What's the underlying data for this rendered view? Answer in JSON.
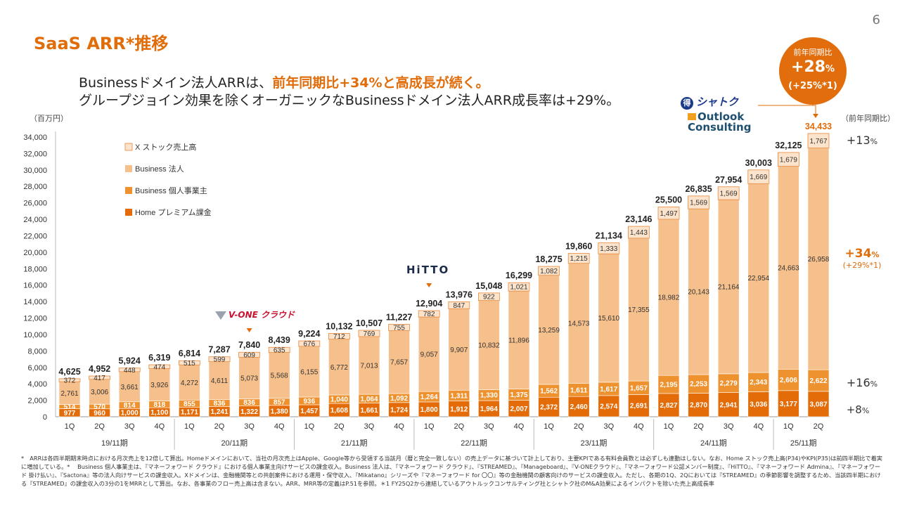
{
  "page": {
    "number": "6",
    "title": "SaaS ARR*推移",
    "headline1_prefix": "Businessドメイン法人ARRは、",
    "headline1_highlight": "前年同期比+34%と高成長が続く。",
    "headline2": "グループジョイン効果を除くオーガニックなBusinessドメイン法人ARR成長率は+29%。",
    "unit": "（百万円）",
    "yoy_header": "（前年同期比）",
    "footnote": "*　ARRは各四半期期末時点における月次売上を12倍して算出。Homeドメインにおいて、当社の月次売上はApple、Google等から受領する当該月（暦と完全一致しない）の売上データに基づいて計上しており、主要KPIである有料会員数とは必ずしも連動はしない。なお、Home ストック売上高(P34)やKPI(P35)は前四半期比で着実に増加している。* 　Business 個人事業主は、『マネーフォワード クラウド』における個人事業主向けサービスの課金収入。Business 法人は、『マネーフォワード クラウド』、『STREAMED』、『Manageboard』、『V-ONEクラウド』、『マネーフォワード公認メンバー制度』、『HiTTO』、『マネーフォワード Admina』、『マネーフォワード 掛け払い』、『Sactona』等の法人向けサービスの課金収入。Xドメインは、金融機関等との共創案件における運用・保守収入、『Mikatano』シリーズや『マネーフォワード for 〇〇』等の金融機関の顧客向けのサービスの課金収入。ただし、各期の1Q、2Qにおいては『STREAMED』の季節影響を調整するため、当該四半期における『STREAMED』の課金収入の3分の1をMRRとして算出。なお、各事業のフロー売上高は含まない。ARR、MRR等の定義はP.51を参照。＊1 FY25Q2から連結しているアウトルックコンサルティング社とシャトク社のM&A効果によるインパクトを除いた売上高成長率"
  },
  "yoy_circle": {
    "label": "前年同期比",
    "main_num": "+28",
    "main_pct": "%",
    "sub": "(+25%*1)"
  },
  "logos": {
    "shatoku": "シャトク",
    "shatoku_badge": "得",
    "outlook_line1": "Outlook",
    "outlook_line2": "Consulting",
    "vone": "V-ONE クラウド",
    "hitto": "HiTTO"
  },
  "right_yoy": {
    "x": {
      "num": "+13",
      "pct": "%"
    },
    "biz_corp": {
      "num": "+34",
      "pct": "%",
      "sub": "(+29%*1)"
    },
    "biz_ind": {
      "num": "+16",
      "pct": "%"
    },
    "home": {
      "num": "+8",
      "pct": "%"
    }
  },
  "colors": {
    "home": "#e36c09",
    "biz_ind": "#ee9230",
    "biz_corp": "#f6c08c",
    "x_stock": "#fbe3cc",
    "accent": "#e06c0a"
  },
  "chart_data": {
    "type": "bar",
    "stacked": true,
    "ylim": [
      0,
      34000
    ],
    "yticks": [
      "0",
      "2,000",
      "4,000",
      "6,000",
      "8,000",
      "10,000",
      "12,000",
      "14,000",
      "16,000",
      "18,000",
      "20,000",
      "22,000",
      "24,000",
      "26,000",
      "28,000",
      "30,000",
      "32,000",
      "34,000"
    ],
    "categories": [
      "1Q",
      "2Q",
      "3Q",
      "4Q",
      "1Q",
      "2Q",
      "3Q",
      "4Q",
      "1Q",
      "2Q",
      "3Q",
      "4Q",
      "1Q",
      "2Q",
      "3Q",
      "4Q",
      "1Q",
      "2Q",
      "3Q",
      "4Q",
      "1Q",
      "2Q",
      "3Q",
      "4Q",
      "1Q",
      "2Q"
    ],
    "fiscal_years": [
      {
        "label": "19/11期",
        "count": 4
      },
      {
        "label": "20/11期",
        "count": 4
      },
      {
        "label": "21/11期",
        "count": 4
      },
      {
        "label": "22/11期",
        "count": 4
      },
      {
        "label": "23/11期",
        "count": 4
      },
      {
        "label": "24/11期",
        "count": 4
      },
      {
        "label": "25/11期",
        "count": 2
      }
    ],
    "series": [
      {
        "name": "Home プレミアム課金",
        "values": [
          977,
          960,
          1000,
          1100,
          1171,
          1241,
          1322,
          1380,
          1457,
          1608,
          1661,
          1724,
          1800,
          1912,
          1964,
          2007,
          2372,
          2460,
          2574,
          2691,
          2827,
          2870,
          2941,
          3036,
          3177,
          3087
        ],
        "labels": [
          "977",
          "960",
          "1,000",
          "1,100",
          "1,171",
          "1,241",
          "1,322",
          "1,380",
          "1,457",
          "1,608",
          "1,661",
          "1,724",
          "1,800",
          "1,912",
          "1,964",
          "2,007",
          "2,372",
          "2,460",
          "2,574",
          "2,691",
          "2,827",
          "2,870",
          "2,941",
          "3,036",
          "3,177",
          "3,087"
        ]
      },
      {
        "name": "Business 個人事業主",
        "values": [
          514,
          570,
          814,
          818,
          855,
          836,
          836,
          857,
          936,
          1040,
          1064,
          1092,
          1264,
          1311,
          1330,
          1375,
          1562,
          1611,
          1617,
          1657,
          2195,
          2253,
          2279,
          2343,
          2606,
          2622
        ],
        "labels": [
          "514",
          "570",
          "814",
          "818",
          "855",
          "836",
          "836",
          "857",
          "936",
          "1,040",
          "1,064",
          "1,092",
          "1,264",
          "1,311",
          "1,330",
          "1,375",
          "1,562",
          "1,611",
          "1,617",
          "1,657",
          "2,195",
          "2,253",
          "2,279",
          "2,343",
          "2,606",
          "2,622"
        ]
      },
      {
        "name": "Business 法人",
        "values": [
          2761,
          3006,
          3661,
          3926,
          4272,
          4611,
          5073,
          5568,
          6155,
          6772,
          7013,
          7657,
          9057,
          9907,
          10832,
          11896,
          13259,
          14573,
          15610,
          17355,
          18982,
          20143,
          21164,
          22954,
          24663,
          26958
        ],
        "labels": [
          "2,761",
          "3,006",
          "3,661",
          "3,926",
          "4,272",
          "4,611",
          "5,073",
          "5,568",
          "6,155",
          "6,772",
          "7,013",
          "7,657",
          "9,057",
          "9,907",
          "10,832",
          "11,896",
          "13,259",
          "14,573",
          "15,610",
          "17,355",
          "18,982",
          "20,143",
          "21,164",
          "22,954",
          "24,663",
          "26,958"
        ]
      },
      {
        "name": "X ストック売上高",
        "values": [
          372,
          417,
          448,
          474,
          515,
          599,
          609,
          635,
          676,
          712,
          769,
          755,
          782,
          847,
          922,
          1021,
          1082,
          1215,
          1333,
          1443,
          1497,
          1569,
          1569,
          1669,
          1679,
          1767
        ],
        "labels": [
          "372",
          "417",
          "448",
          "474",
          "515",
          "599",
          "609",
          "635",
          "676",
          "712",
          "769",
          "755",
          "782",
          "847",
          "922",
          "1,021",
          "1,082",
          "1,215",
          "1,333",
          "1,443",
          "1,497",
          "1,569",
          "1,569",
          "1,669",
          "1,679",
          "1,767"
        ]
      }
    ],
    "totals": [
      "4,625",
      "4,952",
      "5,924",
      "6,319",
      "6,814",
      "7,287",
      "7,840",
      "8,439",
      "9,224",
      "10,132",
      "10,507",
      "11,227",
      "12,904",
      "13,976",
      "15,048",
      "16,299",
      "18,275",
      "19,860",
      "21,134",
      "23,146",
      "25,500",
      "26,835",
      "27,954",
      "30,003",
      "32,125",
      "34,433"
    ],
    "legend_order": [
      "X ストック売上高",
      "Business 法人",
      "Business 個人事業主",
      "Home プレミアム課金"
    ]
  }
}
